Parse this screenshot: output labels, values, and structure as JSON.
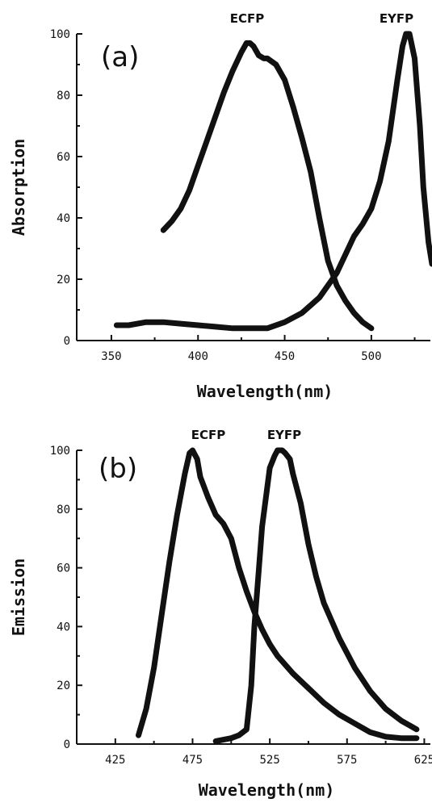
{
  "chart_data": [
    {
      "type": "line",
      "panel_label": "(a)",
      "xlabel": "Wavelength(nm)",
      "ylabel": "Absorption",
      "xlim": [
        330,
        535
      ],
      "ylim": [
        0,
        100
      ],
      "xticks": [
        350,
        400,
        450,
        500
      ],
      "yticks": [
        0,
        20,
        40,
        60,
        80,
        100
      ],
      "grid": false,
      "series": [
        {
          "name": "ECFP",
          "x": [
            380,
            385,
            390,
            395,
            400,
            405,
            410,
            415,
            420,
            425,
            428,
            430,
            432,
            435,
            438,
            440,
            445,
            450,
            455,
            460,
            465,
            470,
            475,
            480,
            485,
            490,
            495,
            500
          ],
          "y": [
            36,
            39,
            43,
            49,
            57,
            65,
            73,
            81,
            88,
            94,
            97,
            97,
            96,
            93,
            92,
            92,
            90,
            85,
            76,
            66,
            55,
            40,
            26,
            18,
            13,
            9,
            6,
            4
          ]
        },
        {
          "name": "EYFP",
          "x": [
            353,
            360,
            370,
            380,
            390,
            400,
            410,
            420,
            430,
            440,
            450,
            460,
            470,
            480,
            485,
            490,
            495,
            500,
            505,
            510,
            515,
            518,
            520,
            522,
            525,
            528,
            530,
            533,
            535
          ],
          "y": [
            5,
            5,
            6,
            6,
            5.5,
            5,
            4.5,
            4,
            4,
            4,
            6,
            9,
            14,
            22,
            28,
            34,
            38,
            43,
            52,
            65,
            85,
            96,
            100,
            100,
            92,
            70,
            50,
            32,
            25
          ]
        }
      ]
    },
    {
      "type": "line",
      "panel_label": "(b)",
      "xlabel": "Wavelength(nm)",
      "ylabel": "Emission",
      "xlim": [
        400,
        630
      ],
      "ylim": [
        0,
        100
      ],
      "xticks": [
        425,
        475,
        525,
        575,
        625
      ],
      "yticks": [
        0,
        20,
        40,
        60,
        80,
        100
      ],
      "grid": false,
      "series": [
        {
          "name": "ECFP",
          "x": [
            440,
            445,
            450,
            455,
            460,
            465,
            470,
            473,
            475,
            478,
            480,
            485,
            490,
            495,
            500,
            505,
            510,
            515,
            520,
            525,
            530,
            540,
            550,
            560,
            570,
            580,
            590,
            600,
            610,
            620
          ],
          "y": [
            3,
            12,
            26,
            44,
            62,
            78,
            92,
            99,
            100,
            97,
            91,
            84,
            78,
            75,
            70,
            60,
            52,
            45,
            39,
            34,
            30,
            24,
            19,
            14,
            10,
            7,
            4,
            2.5,
            2,
            2
          ]
        },
        {
          "name": "EYFP",
          "x": [
            490,
            500,
            505,
            510,
            513,
            515,
            518,
            520,
            523,
            525,
            528,
            530,
            533,
            535,
            538,
            540,
            545,
            550,
            555,
            560,
            570,
            580,
            590,
            600,
            610,
            620
          ],
          "y": [
            1,
            2,
            3,
            5,
            20,
            40,
            60,
            74,
            86,
            94,
            98,
            100,
            100,
            99,
            97,
            92,
            82,
            68,
            57,
            48,
            36,
            26,
            18,
            12,
            8,
            5
          ]
        }
      ]
    }
  ]
}
